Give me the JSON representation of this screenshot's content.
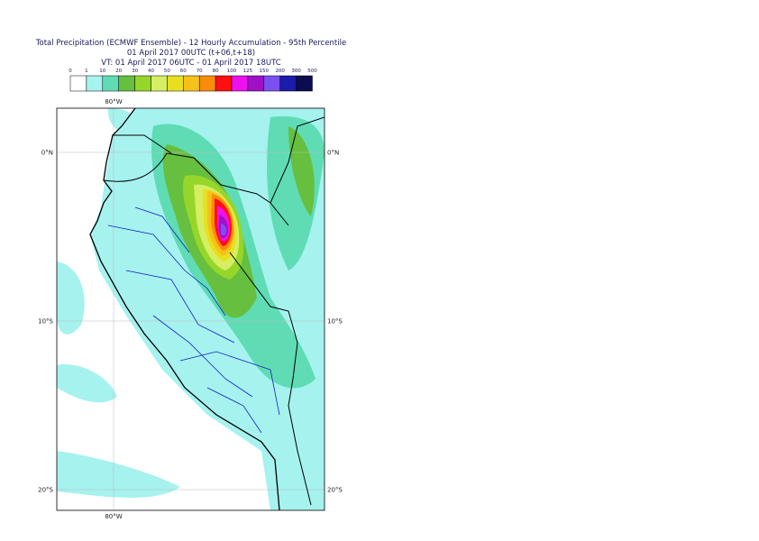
{
  "title": [
    "Total Precipitation (ECMWF Ensemble) - 12 Hourly Accumulation - 95th Percentile",
    "01 April 2017 00UTC (t+06,t+18)",
    "VT: 01 April 2017 06UTC - 01 April 2017 18UTC"
  ],
  "colorbar": {
    "levels": [
      0,
      1,
      10,
      20,
      30,
      40,
      50,
      60,
      70,
      80,
      100,
      125,
      150,
      200,
      300,
      500
    ],
    "colors": [
      "#ffffff",
      "#a6f2ef",
      "#5fdcb4",
      "#66bf3f",
      "#96d62a",
      "#d6ee62",
      "#e8e01e",
      "#f5c21a",
      "#fb8c0a",
      "#ff1010",
      "#ee10ee",
      "#a010c8",
      "#7a50f0",
      "#1c1caa",
      "#0c0c50"
    ]
  },
  "map": {
    "latitudes": [
      {
        "value": 0,
        "label": "0°N"
      },
      {
        "value": -10,
        "label": "10°S"
      },
      {
        "value": -20,
        "label": "20°S"
      }
    ],
    "longitudes": [
      {
        "value": -80,
        "label": "80°W"
      }
    ]
  }
}
